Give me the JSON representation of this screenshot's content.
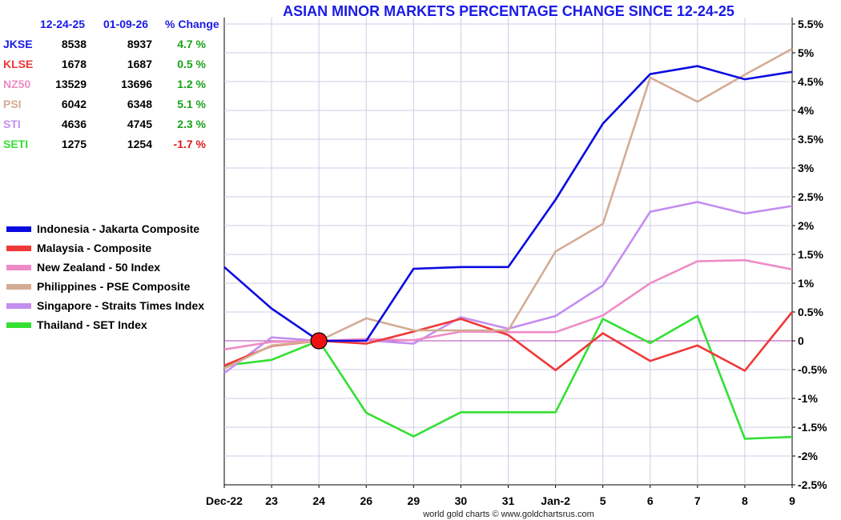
{
  "chart_data": {
    "type": "line",
    "title": "ASIAN MINOR MARKETS PERCENTAGE CHANGE SINCE 12-24-25",
    "categories": [
      "Dec-22",
      "23",
      "24",
      "26",
      "29",
      "30",
      "31",
      "Jan-2",
      "5",
      "6",
      "7",
      "8",
      "9"
    ],
    "y_ticks": [
      "5.5%",
      "5%",
      "4.5%",
      "4%",
      "3.5%",
      "3%",
      "2.5%",
      "2%",
      "1.5%",
      "1%",
      "0.5%",
      "0",
      "-0.5%",
      "-1%",
      "-1.5%",
      "-2%",
      "-2.5%"
    ],
    "ylim": [
      -2.5,
      5.5
    ],
    "y_axis_position": "right",
    "grid": true,
    "baseline_marker": "24",
    "series": [
      {
        "name": "Indonesia - Jakarta Composite",
        "color": "#0a0ae0",
        "values": [
          1.28,
          0.56,
          0.0,
          0.0,
          1.25,
          1.28,
          1.28,
          2.45,
          3.77,
          4.63,
          4.77,
          4.54,
          4.67
        ]
      },
      {
        "name": "Malaysia - Composite",
        "color": "#f03838",
        "values": [
          -0.43,
          -0.09,
          0.0,
          -0.05,
          0.16,
          0.38,
          0.1,
          -0.51,
          0.13,
          -0.35,
          -0.08,
          -0.52,
          0.5
        ]
      },
      {
        "name": "New Zealand - 50 Index",
        "color": "#ee8cc6",
        "values": [
          -0.15,
          -0.02,
          0.0,
          0.03,
          0.01,
          0.16,
          0.15,
          0.15,
          0.44,
          1.0,
          1.38,
          1.4,
          1.24
        ]
      },
      {
        "name": "Philippines - PSE Composite",
        "color": "#d4ac94",
        "values": [
          -0.48,
          -0.08,
          0.0,
          0.39,
          0.18,
          0.18,
          0.18,
          1.55,
          2.03,
          4.57,
          4.15,
          4.62,
          5.07
        ]
      },
      {
        "name": "Singapore - Straits Times Index",
        "color": "#c48ef0",
        "values": [
          -0.56,
          0.06,
          0.0,
          0.01,
          -0.05,
          0.41,
          0.21,
          0.43,
          0.96,
          2.24,
          2.41,
          2.21,
          2.34
        ]
      },
      {
        "name": "Thailand - SET Index",
        "color": "#33e033",
        "values": [
          -0.43,
          -0.33,
          0.0,
          -1.25,
          -1.66,
          -1.24,
          -1.24,
          -1.24,
          0.38,
          -0.04,
          0.43,
          -1.7,
          -1.67
        ]
      }
    ]
  },
  "table": {
    "header": {
      "col1": "12-24-25",
      "col2": "01-09-26",
      "col3": "% Change",
      "color": "#1a1ae6"
    },
    "rows": [
      {
        "name": "JKSE",
        "v1": "8538",
        "v2": "8937",
        "pct": "4.7 %",
        "name_color": "#1a1ae6",
        "pct_color": "#1aa31a"
      },
      {
        "name": "KLSE",
        "v1": "1678",
        "v2": "1687",
        "pct": "0.5 %",
        "name_color": "#f03838",
        "pct_color": "#1aa31a"
      },
      {
        "name": "NZ50",
        "v1": "13529",
        "v2": "13696",
        "pct": "1.2 %",
        "name_color": "#ee8cc6",
        "pct_color": "#1aa31a"
      },
      {
        "name": "PSI",
        "v1": "6042",
        "v2": "6348",
        "pct": "5.1 %",
        "name_color": "#d4ac94",
        "pct_color": "#1aa31a"
      },
      {
        "name": "STI",
        "v1": "4636",
        "v2": "4745",
        "pct": "2.3 %",
        "name_color": "#c48ef0",
        "pct_color": "#1aa31a"
      },
      {
        "name": "SETI",
        "v1": "1275",
        "v2": "1254",
        "pct": "-1.7 %",
        "name_color": "#33e033",
        "pct_color": "#e01a1a"
      }
    ]
  },
  "footer": "world gold charts © www.goldchartsrus.com"
}
